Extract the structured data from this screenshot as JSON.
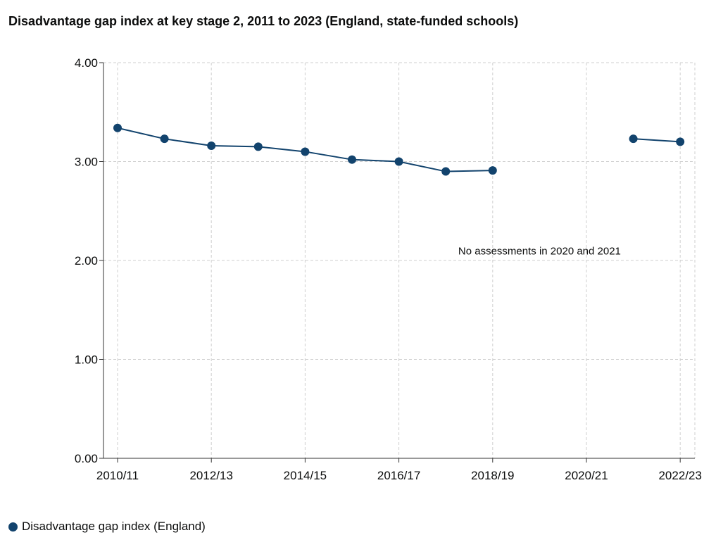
{
  "chart_data": {
    "type": "line",
    "title": "Disadvantage gap index at key stage 2, 2011 to 2023 (England, state-funded schools)",
    "xlabel": "",
    "ylabel": "",
    "categories": [
      "2010/11",
      "2011/12",
      "2012/13",
      "2013/14",
      "2014/15",
      "2015/16",
      "2016/17",
      "2017/18",
      "2018/19",
      "2019/20",
      "2020/21",
      "2021/22",
      "2022/23"
    ],
    "x_tick_labels": [
      "2010/11",
      "2012/13",
      "2014/15",
      "2016/17",
      "2018/19",
      "2020/21",
      "2022/23"
    ],
    "series": [
      {
        "name": "Disadvantage gap index (England)",
        "color": "#12436d",
        "values": [
          3.34,
          3.23,
          3.16,
          3.15,
          3.1,
          3.02,
          3.0,
          2.9,
          2.91,
          null,
          null,
          3.23,
          3.2
        ]
      }
    ],
    "ylim": [
      0,
      4
    ],
    "y_ticks": [
      "0.00",
      "1.00",
      "2.00",
      "3.00",
      "4.00"
    ],
    "grid": true,
    "legend_position": "bottom-left",
    "annotations": [
      {
        "text": "No assessments in 2020 and 2021",
        "x": "2019/20",
        "y": 2.06
      }
    ]
  }
}
